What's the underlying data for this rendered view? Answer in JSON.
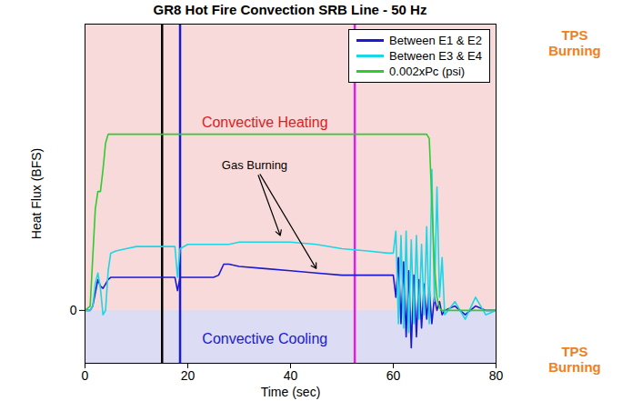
{
  "chart_data": {
    "type": "line",
    "title": "GR8 Hot Fire Convection SRB Line - 50 Hz",
    "x_label": "Time (sec)",
    "y_label": "Heat Flux (BFS)",
    "x": [
      0,
      1,
      1.5,
      2,
      2.5,
      3,
      3.5,
      4,
      4.5,
      5,
      6,
      8,
      10,
      15,
      17.5,
      18,
      18.5,
      20,
      25,
      26,
      27,
      28,
      30,
      35,
      40,
      45,
      50,
      55,
      59,
      60,
      60.5,
      61,
      61.5,
      62,
      62.5,
      63,
      63.5,
      64,
      64.5,
      65,
      65.5,
      66,
      66.5,
      67,
      67.5,
      68,
      68.5,
      69,
      69.5,
      70,
      72,
      74,
      76,
      78,
      80
    ],
    "series": [
      {
        "name": "Between E1 & E2",
        "color": "#1a1ad0",
        "values": [
          0,
          0,
          0.1,
          0.4,
          0.7,
          0.55,
          0.5,
          0.6,
          0.7,
          0.75,
          0.75,
          0.75,
          0.75,
          0.75,
          0.75,
          0.45,
          0.75,
          0.75,
          0.75,
          0.8,
          1.05,
          1.05,
          1.0,
          0.95,
          0.9,
          0.85,
          0.8,
          0.8,
          0.8,
          0.8,
          0.3,
          1.2,
          -0.3,
          1.1,
          -0.6,
          0.9,
          -0.85,
          0.8,
          -0.6,
          0.7,
          -0.4,
          0.6,
          -0.2,
          0.5,
          -0.3,
          0.3,
          0,
          0.2,
          -0.1,
          0,
          0.1,
          -0.1,
          0.1,
          0,
          0
        ]
      },
      {
        "name": "Between E3 & E4",
        "color": "#1ad6e6",
        "values": [
          0,
          0,
          0.1,
          0.6,
          0.85,
          0.5,
          -0.1,
          0,
          0.9,
          1.3,
          1.35,
          1.4,
          1.45,
          1.45,
          1.45,
          0.75,
          1.4,
          1.5,
          1.5,
          1.5,
          1.5,
          1.5,
          1.55,
          1.55,
          1.55,
          1.5,
          1.4,
          1.35,
          1.3,
          1.3,
          1.8,
          -0.3,
          1.7,
          -0.4,
          1.8,
          -0.5,
          1.6,
          -0.3,
          1.7,
          -0.2,
          1.5,
          -0.1,
          1.9,
          -0.3,
          3.2,
          0.2,
          2.8,
          0.3,
          1.2,
          -0.1,
          0.2,
          -0.2,
          0.3,
          -0.1,
          0
        ]
      },
      {
        "name": "0.002xPc (psi)",
        "color": "#2ecc2e",
        "values": [
          0,
          0.1,
          1.2,
          2.3,
          2.7,
          2.7,
          3.2,
          3.8,
          4,
          4,
          4,
          4,
          4,
          4,
          4,
          4,
          4,
          4,
          4,
          4,
          4,
          4,
          4,
          4,
          4,
          4,
          4,
          4,
          4,
          4,
          4,
          4,
          4,
          4,
          4,
          4,
          4,
          4,
          4,
          4,
          4,
          4,
          4,
          3.9,
          2.5,
          1,
          0.3,
          0.05,
          0,
          0,
          0,
          0,
          0,
          0,
          0
        ]
      }
    ],
    "xlim": [
      0,
      80
    ],
    "xticks": [
      0,
      20,
      40,
      60,
      80
    ],
    "ylim": [
      -1.2,
      6.5
    ],
    "yticks": [
      0
    ],
    "grid": false,
    "legend": "top-right",
    "vlines": [
      {
        "x": 15,
        "color": "#000000",
        "line_style": "dashed"
      },
      {
        "x": 18.5,
        "color": "#1a1ad0",
        "line_style": "dashed"
      },
      {
        "x": 52.5,
        "color": "#e020e0",
        "line_style": "dashed"
      }
    ],
    "regions": [
      {
        "text": "Convective Heating",
        "x": 35,
        "y": 4.15,
        "y_range": [
          0,
          6.5
        ],
        "color": "#e02020"
      },
      {
        "text": "Convective Cooling",
        "x": 35,
        "y": -0.75,
        "y_range": [
          -1.2,
          0
        ],
        "color": "#1a1ad0"
      }
    ],
    "annotations": [
      {
        "text": "Gas Burning",
        "x": 33,
        "y": 3.3,
        "arrows": [
          {
            "x": 38,
            "y": 1.7
          },
          {
            "x": 45,
            "y": 0.95
          }
        ]
      }
    ],
    "side_labels": [
      "TPS Burning",
      "TPS Burning"
    ]
  }
}
